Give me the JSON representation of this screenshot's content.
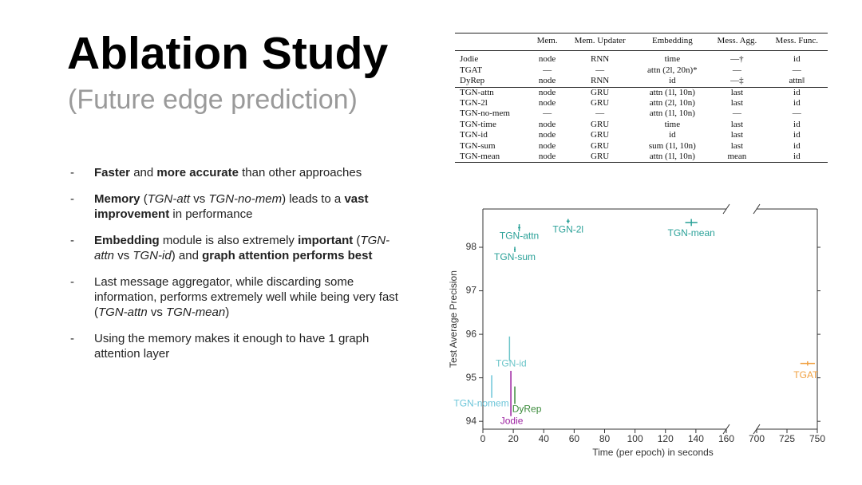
{
  "slide": {
    "title": "Ablation Study",
    "subtitle": "(Future edge prediction)",
    "bullets": [
      [
        {
          "text": "Faster",
          "bold": true
        },
        {
          "text": " and "
        },
        {
          "text": "more accurate",
          "bold": true
        },
        {
          "text": " than other approaches"
        }
      ],
      [
        {
          "text": "Memory",
          "bold": true
        },
        {
          "text": " ("
        },
        {
          "text": "TGN-att",
          "italic": true
        },
        {
          "text": " vs "
        },
        {
          "text": "TGN-no-mem",
          "italic": true
        },
        {
          "text": ") leads to a "
        },
        {
          "text": "vast improvement",
          "bold": true
        },
        {
          "text": " in performance"
        }
      ],
      [
        {
          "text": "Embedding",
          "bold": true
        },
        {
          "text": " module is also extremely "
        },
        {
          "text": "important",
          "bold": true
        },
        {
          "text": " ("
        },
        {
          "text": "TGN-attn",
          "italic": true
        },
        {
          "text": " vs "
        },
        {
          "text": "TGN-id",
          "italic": true
        },
        {
          "text": ") and "
        },
        {
          "text": "graph attention performs best",
          "bold": true
        }
      ],
      [
        {
          "text": "Last message aggregator, while discarding some information, performs extremely well while being very fast ("
        },
        {
          "text": "TGN-attn",
          "italic": true
        },
        {
          "text": " vs "
        },
        {
          "text": "TGN-mean",
          "italic": true
        },
        {
          "text": ")"
        }
      ],
      [
        {
          "text": "Using the memory makes it enough to have 1 graph attention layer"
        }
      ]
    ]
  },
  "table": {
    "header": [
      "",
      "Mem.",
      "Mem. Updater",
      "Embedding",
      "Mess. Agg.",
      "Mess. Func."
    ],
    "rows": [
      [
        "Jodie",
        "node",
        "RNN",
        "time",
        "—†",
        "id"
      ],
      [
        "TGAT",
        "—",
        "—",
        "attn (2l, 20n)*",
        "—",
        "—"
      ],
      [
        "DyRep",
        "node",
        "RNN",
        "id",
        "—‡",
        "attn‖"
      ],
      [
        "TGN-attn",
        "node",
        "GRU",
        "attn (1l, 10n)",
        "last",
        "id"
      ],
      [
        "TGN-2l",
        "node",
        "GRU",
        "attn (2l, 10n)",
        "last",
        "id"
      ],
      [
        "TGN-no-mem",
        "—",
        "—",
        "attn (1l, 10n)",
        "—",
        "—"
      ],
      [
        "TGN-time",
        "node",
        "GRU",
        "time",
        "last",
        "id"
      ],
      [
        "TGN-id",
        "node",
        "GRU",
        "id",
        "last",
        "id"
      ],
      [
        "TGN-sum",
        "node",
        "GRU",
        "sum (1l, 10n)",
        "last",
        "id"
      ],
      [
        "TGN-mean",
        "node",
        "GRU",
        "attn (1l, 10n)",
        "mean",
        "id"
      ]
    ]
  },
  "chart_data": {
    "type": "scatter",
    "x_label": "Time (per epoch) in seconds",
    "y_label": "Test Average Precision",
    "xlim": [
      0,
      160
    ],
    "xticks": [
      0,
      20,
      40,
      60,
      80,
      100,
      120,
      140,
      160
    ],
    "x2lim": [
      700,
      750
    ],
    "x2ticks": [
      700,
      725,
      750
    ],
    "ylim": [
      93.82,
      98.88
    ],
    "yticks": [
      94,
      95,
      96,
      97,
      98
    ],
    "series": [
      {
        "name": "TGN-attn",
        "color": "#2aa198",
        "x": [
          23.9
        ],
        "values": [
          98.45
        ],
        "yerr": [
          0.08
        ],
        "xerr": [
          0.8
        ]
      },
      {
        "name": "TGN-2l",
        "color": "#2aa198",
        "x": [
          56
        ],
        "values": [
          98.6
        ],
        "yerr": [
          0.05
        ],
        "xerr": [
          1
        ]
      },
      {
        "name": "TGN-mean",
        "color": "#2aa198",
        "x": [
          137
        ],
        "values": [
          98.57
        ],
        "yerr": [
          0.08
        ],
        "xerr": [
          4
        ]
      },
      {
        "name": "TGN-sum",
        "color": "#2aa198",
        "x": [
          21
        ],
        "values": [
          97.95
        ],
        "yerr": [
          0.06
        ],
        "xerr": [
          0.5
        ]
      },
      {
        "name": "TGN-id",
        "color": "#6cc5c9",
        "x": [
          17.5
        ],
        "values": [
          95.67
        ],
        "yerr": [
          0.28
        ],
        "xerr": [
          0
        ]
      },
      {
        "name": "TGN-nomem",
        "color": "#6cc5d9",
        "x": [
          5.8
        ],
        "values": [
          94.8
        ],
        "yerr": [
          0.26
        ],
        "xerr": [
          0
        ]
      },
      {
        "name": "DyRep",
        "color": "#3a8a3a",
        "x": [
          21
        ],
        "values": [
          94.6
        ],
        "yerr": [
          0.2
        ],
        "xerr": [
          0
        ]
      },
      {
        "name": "Jodie",
        "color": "#9b1fa0",
        "x": [
          18.4
        ],
        "values": [
          94.64
        ],
        "yerr": [
          0.52
        ],
        "xerr": [
          0
        ]
      },
      {
        "name": "TGAT",
        "color": "#f0a040",
        "axis": "x2",
        "x": [
          742
        ],
        "values": [
          95.33
        ],
        "yerr": [
          0.05
        ],
        "xerr": [
          6
        ]
      }
    ]
  }
}
